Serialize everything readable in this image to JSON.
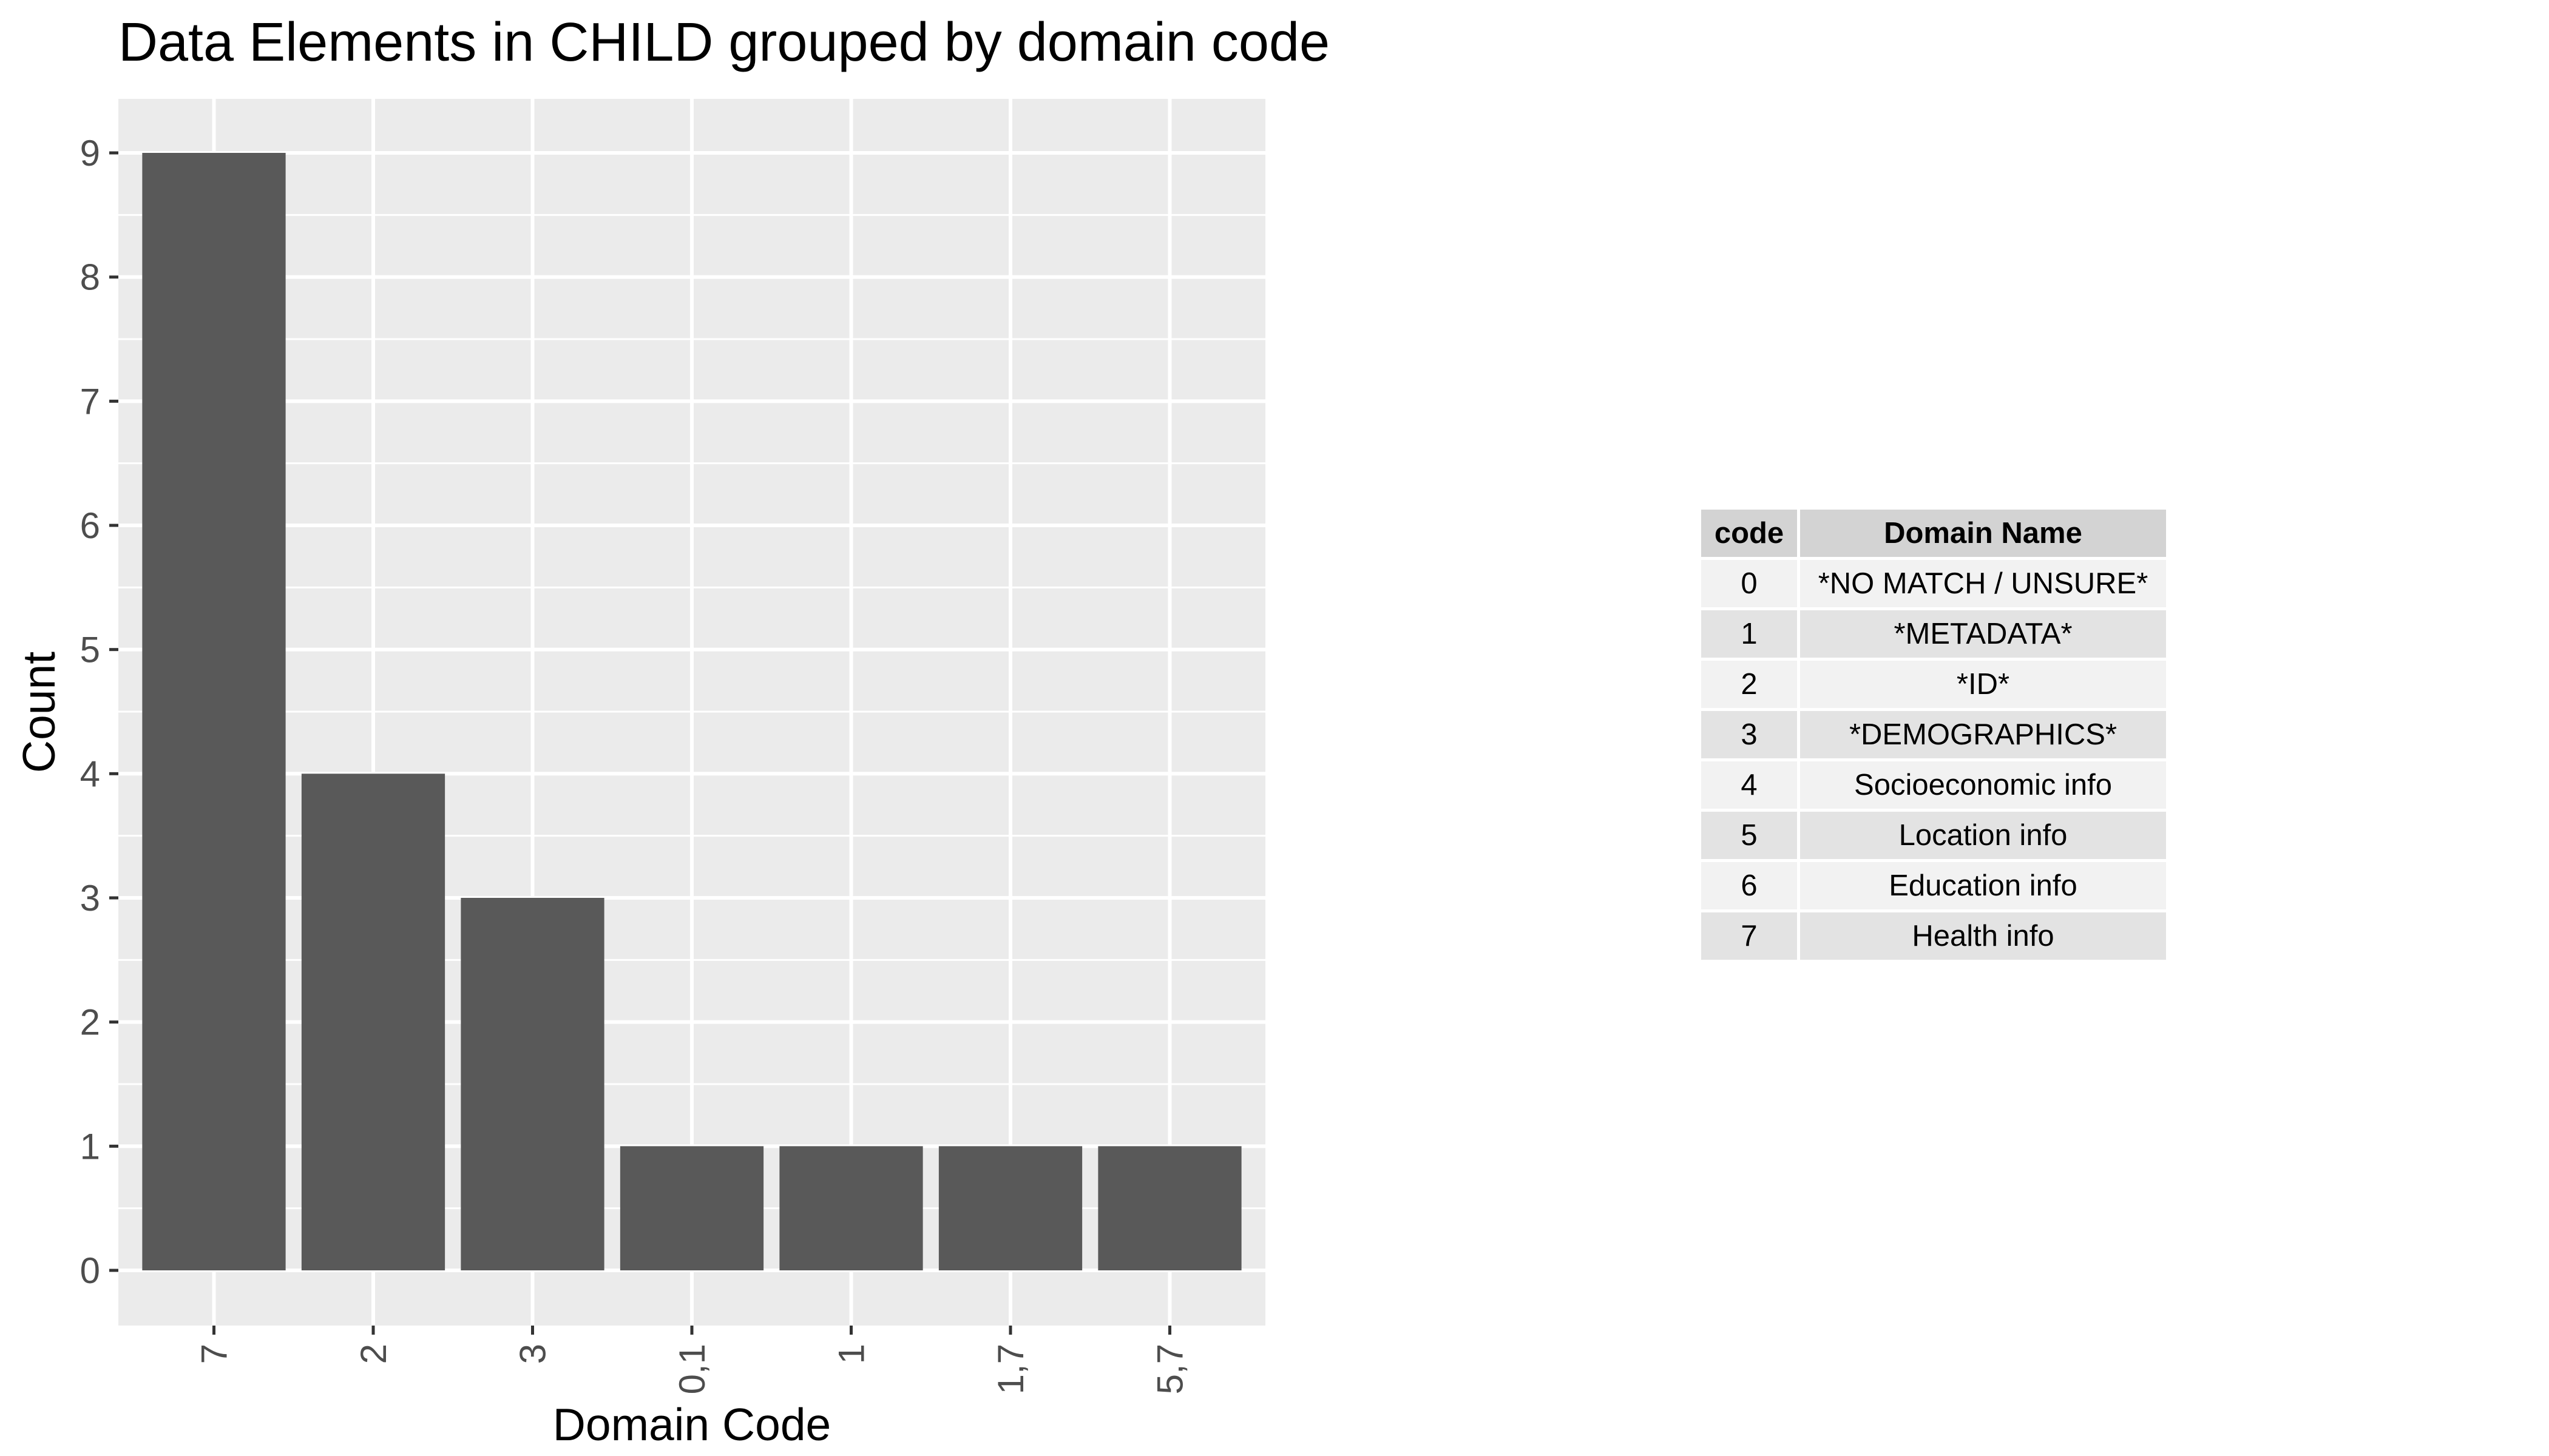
{
  "chart_data": {
    "type": "bar",
    "title": "Data Elements in CHILD grouped by domain code",
    "xlabel": "Domain Code",
    "ylabel": "Count",
    "categories": [
      "7",
      "2",
      "3",
      "0,1",
      "1",
      "1,7",
      "5,7"
    ],
    "values": [
      9,
      4,
      3,
      1,
      1,
      1,
      1
    ],
    "ylim": [
      0,
      9
    ],
    "yticks": [
      0,
      1,
      2,
      3,
      4,
      5,
      6,
      7,
      8,
      9
    ],
    "grid": true,
    "legend": "none",
    "colors": {
      "bar": "#595959",
      "panel": "#ebebeb",
      "grid": "#ffffff"
    }
  },
  "legend_table": {
    "headers": {
      "code": "code",
      "name": "Domain Name"
    },
    "rows": [
      {
        "code": "0",
        "name": "*NO MATCH / UNSURE*"
      },
      {
        "code": "1",
        "name": "*METADATA*"
      },
      {
        "code": "2",
        "name": "*ID*"
      },
      {
        "code": "3",
        "name": "*DEMOGRAPHICS*"
      },
      {
        "code": "4",
        "name": "Socioeconomic info"
      },
      {
        "code": "5",
        "name": "Location info"
      },
      {
        "code": "6",
        "name": "Education info"
      },
      {
        "code": "7",
        "name": "Health info"
      }
    ]
  }
}
